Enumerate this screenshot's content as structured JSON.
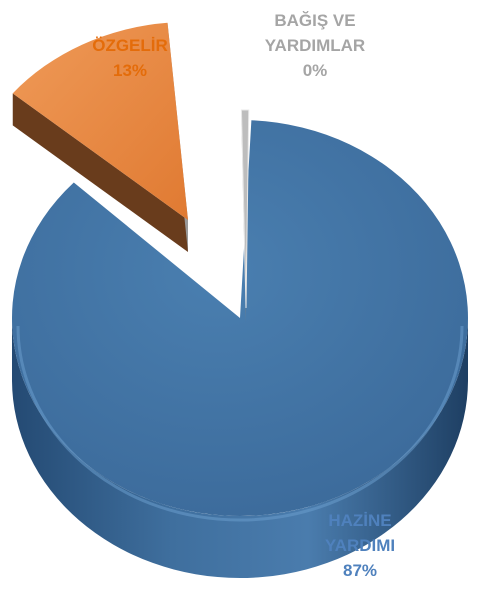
{
  "chart_data": {
    "type": "pie",
    "style": "3d-exploded",
    "slices": [
      {
        "label": "HAZİNE YARDIMI",
        "label_lines": [
          "HAZİNE",
          "YARDIMI"
        ],
        "value": 87,
        "value_label": "87%",
        "color": "#40719f",
        "label_color": "#4f81bd"
      },
      {
        "label": "ÖZGELİR",
        "label_lines": [
          "ÖZGELİR"
        ],
        "value": 13,
        "value_label": "13%",
        "color": "#e9853f",
        "label_color": "#e46c0a"
      },
      {
        "label": "BAĞIŞ VE YARDIMLAR",
        "label_lines": [
          "BAĞIŞ VE",
          "YARDIMLAR"
        ],
        "value": 0,
        "value_label": "0%",
        "color": "#a5a5a5",
        "label_color": "#a5a5a5"
      }
    ],
    "legend": "none"
  }
}
